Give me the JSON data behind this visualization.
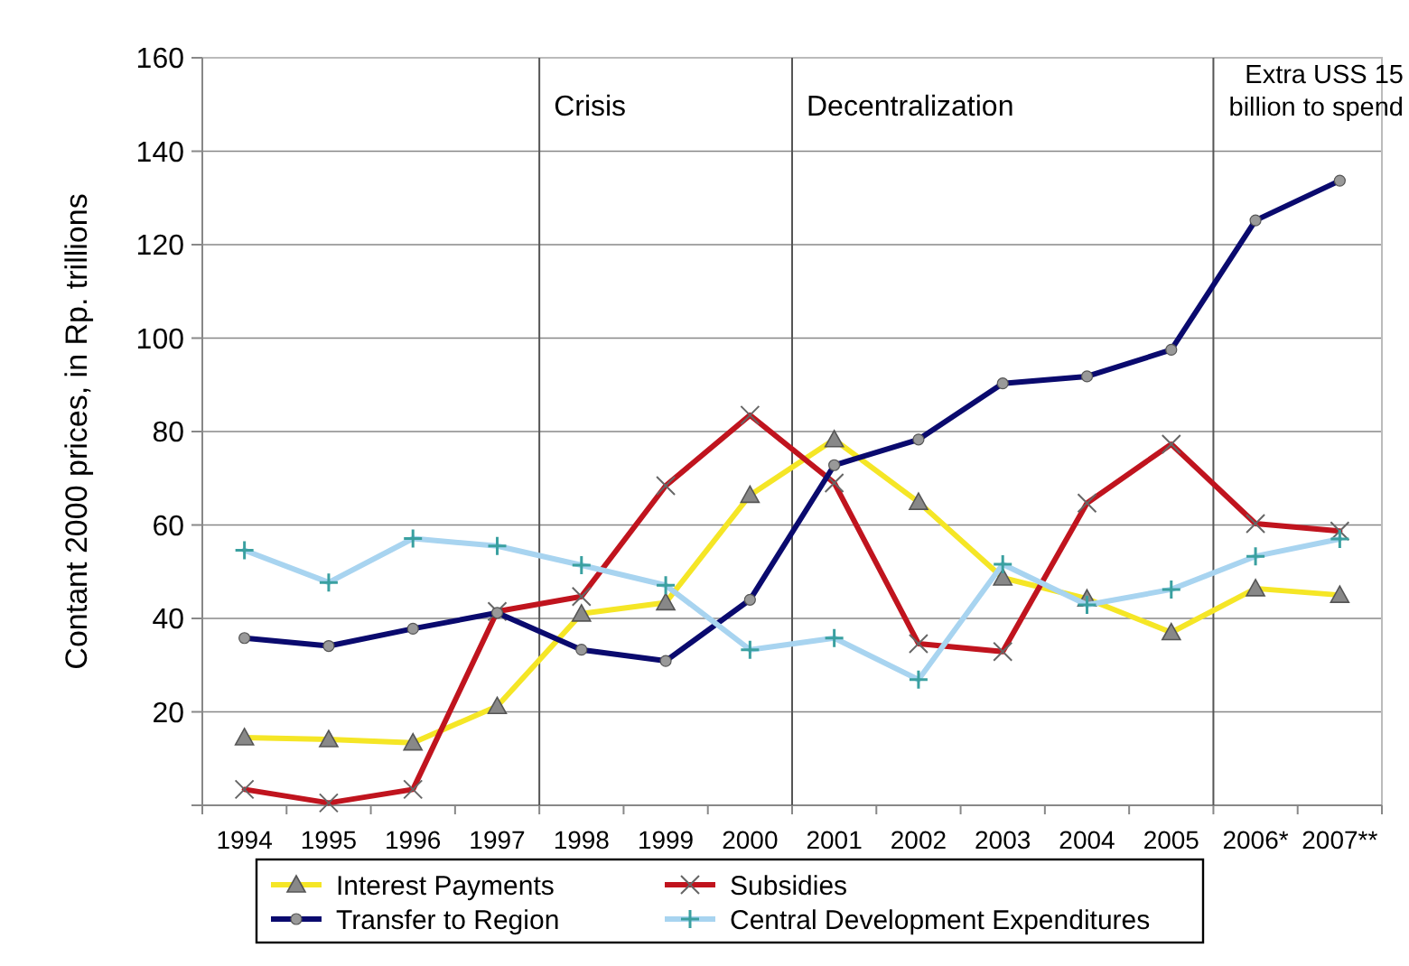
{
  "chart_data": {
    "type": "line",
    "ylabel": "Contant 2000 prices, in Rp. trillions",
    "categories": [
      "1994",
      "1995",
      "1996",
      "1997",
      "1998",
      "1999",
      "2000",
      "2001",
      "2002",
      "2003",
      "2004",
      "2005",
      "2006*",
      "2007**"
    ],
    "ylim": [
      0,
      160
    ],
    "yticks": [
      {
        "value": 0,
        "label": null
      },
      20,
      40,
      60,
      80,
      100,
      120,
      140,
      160
    ],
    "grid": "y",
    "legend": "bottom",
    "line_style": "solid",
    "series": [
      {
        "name": "Interest Payments",
        "color": "#f5e626",
        "marker": "triangle",
        "values": [
          14.5,
          14.1,
          13.4,
          21.2,
          41,
          43.4,
          66.4,
          78.3,
          64.9,
          48.7,
          44.2,
          37,
          46.4,
          45
        ]
      },
      {
        "name": "Subsidies",
        "color": "#c0141e",
        "marker": "x",
        "values": [
          3.4,
          0.5,
          3.4,
          41.5,
          44.7,
          68.4,
          83.5,
          69,
          34.6,
          32.9,
          64.7,
          77.3,
          60.3,
          58.7
        ]
      },
      {
        "name": "Transfer to Region",
        "color": "#0a0a6e",
        "marker": "circle",
        "values": [
          35.8,
          34.1,
          37.8,
          41.2,
          33.3,
          30.9,
          44,
          72.8,
          78.3,
          90.3,
          91.8,
          97.5,
          125.2,
          133.7
        ]
      },
      {
        "name": "Central Development Expenditures",
        "color": "#a8d4f0",
        "marker": "cross",
        "values": [
          54.6,
          47.7,
          57.1,
          55.5,
          51.4,
          47.1,
          33.3,
          35.8,
          26.9,
          51.6,
          42.9,
          46.2,
          53.3,
          57
        ]
      }
    ],
    "annotations": [
      "Crisis",
      "Decentralization",
      "Extra USS 15\nbillion to spend"
    ]
  }
}
